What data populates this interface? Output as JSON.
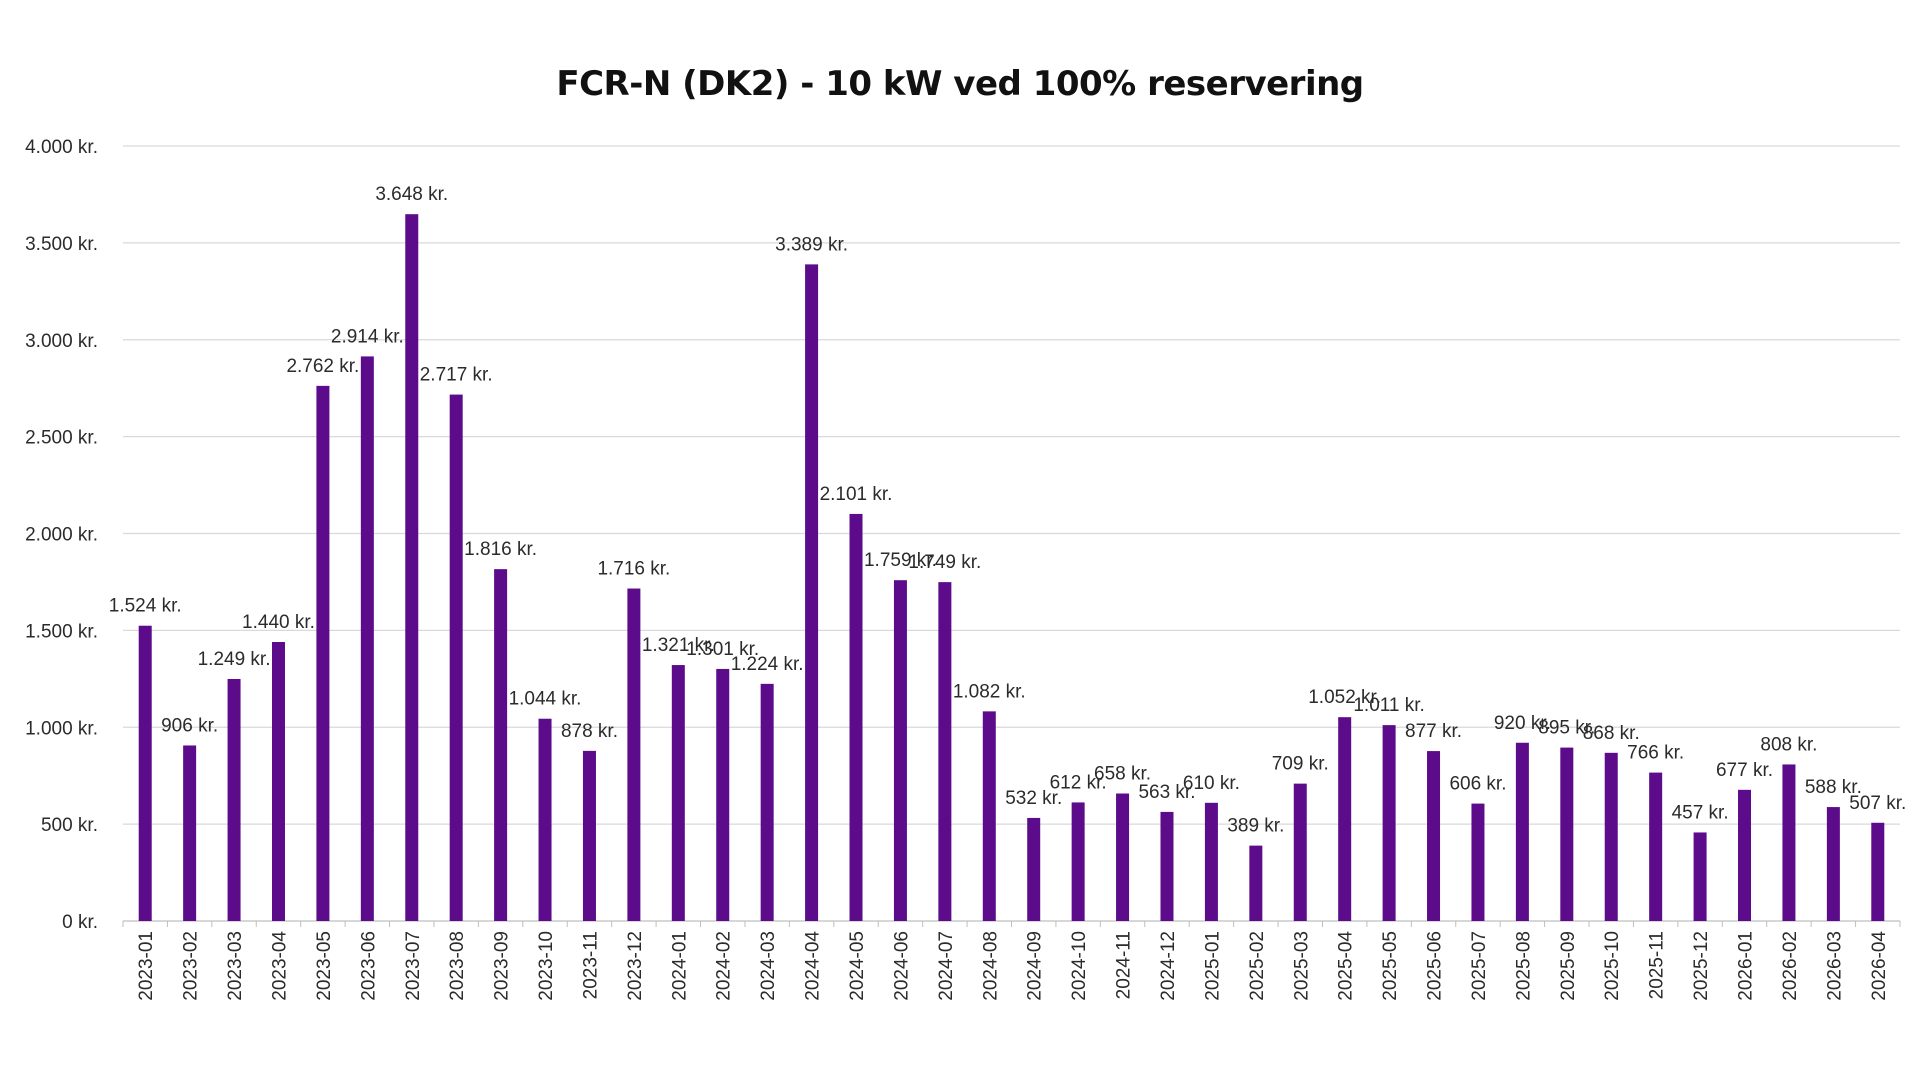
{
  "chart_data": {
    "type": "bar",
    "title": "FCR-N (DK2) - 10 kW ved 100% reservering",
    "xlabel": "",
    "ylabel": "",
    "ylim": [
      0,
      4000
    ],
    "grid": true,
    "legend": "none",
    "bar_color": "#5c0b8a",
    "y_ticks": [
      {
        "value": 0,
        "label": "0 kr."
      },
      {
        "value": 500,
        "label": "500 kr."
      },
      {
        "value": 1000,
        "label": "1.000 kr."
      },
      {
        "value": 1500,
        "label": "1.500 kr."
      },
      {
        "value": 2000,
        "label": "2.000 kr."
      },
      {
        "value": 2500,
        "label": "2.500 kr."
      },
      {
        "value": 3000,
        "label": "3.000 kr."
      },
      {
        "value": 3500,
        "label": "3.500 kr."
      },
      {
        "value": 4000,
        "label": "4.000 kr."
      }
    ],
    "categories": [
      "2023-01",
      "2023-02",
      "2023-03",
      "2023-04",
      "2023-05",
      "2023-06",
      "2023-07",
      "2023-08",
      "2023-09",
      "2023-10",
      "2023-11",
      "2023-12",
      "2024-01",
      "2024-02",
      "2024-03",
      "2024-04",
      "2024-05",
      "2024-06",
      "2024-07",
      "2024-08",
      "2024-09",
      "2024-10",
      "2024-11",
      "2024-12",
      "2025-01",
      "2025-02",
      "2025-03",
      "2025-04",
      "2025-05",
      "2025-06",
      "2025-07",
      "2025-08",
      "2025-09",
      "2025-10",
      "2025-11",
      "2025-12",
      "2026-01",
      "2026-02",
      "2026-03",
      "2026-04"
    ],
    "values": [
      1524,
      906,
      1249,
      1440,
      2762,
      2914,
      3648,
      2717,
      1816,
      1044,
      878,
      1716,
      1321,
      1301,
      1224,
      3389,
      2101,
      1759,
      1749,
      1082,
      532,
      612,
      658,
      563,
      610,
      389,
      709,
      1052,
      1011,
      877,
      606,
      920,
      895,
      868,
      766,
      457,
      677,
      808,
      588,
      507
    ],
    "data_labels": [
      "1.524 kr.",
      "906 kr.",
      "1.249 kr.",
      "1.440 kr.",
      "2.762 kr.",
      "2.914 kr.",
      "3.648 kr.",
      "2.717 kr.",
      "1.816 kr.",
      "1.044 kr.",
      "878 kr.",
      "1.716 kr.",
      "1.321 kr.",
      "1.301 kr.",
      "1.224 kr.",
      "3.389 kr.",
      "2.101 kr.",
      "1.759 kr.",
      "1.749 kr.",
      "1.082 kr.",
      "532 kr.",
      "612 kr.",
      "658 kr.",
      "563 kr.",
      "610 kr.",
      "389 kr.",
      "709 kr.",
      "1.052 kr.",
      "1.011 kr.",
      "877 kr.",
      "606 kr.",
      "920 kr.",
      "895 kr.",
      "868 kr.",
      "766 kr.",
      "457 kr.",
      "677 kr.",
      "808 kr.",
      "588 kr.",
      "507 kr."
    ]
  }
}
